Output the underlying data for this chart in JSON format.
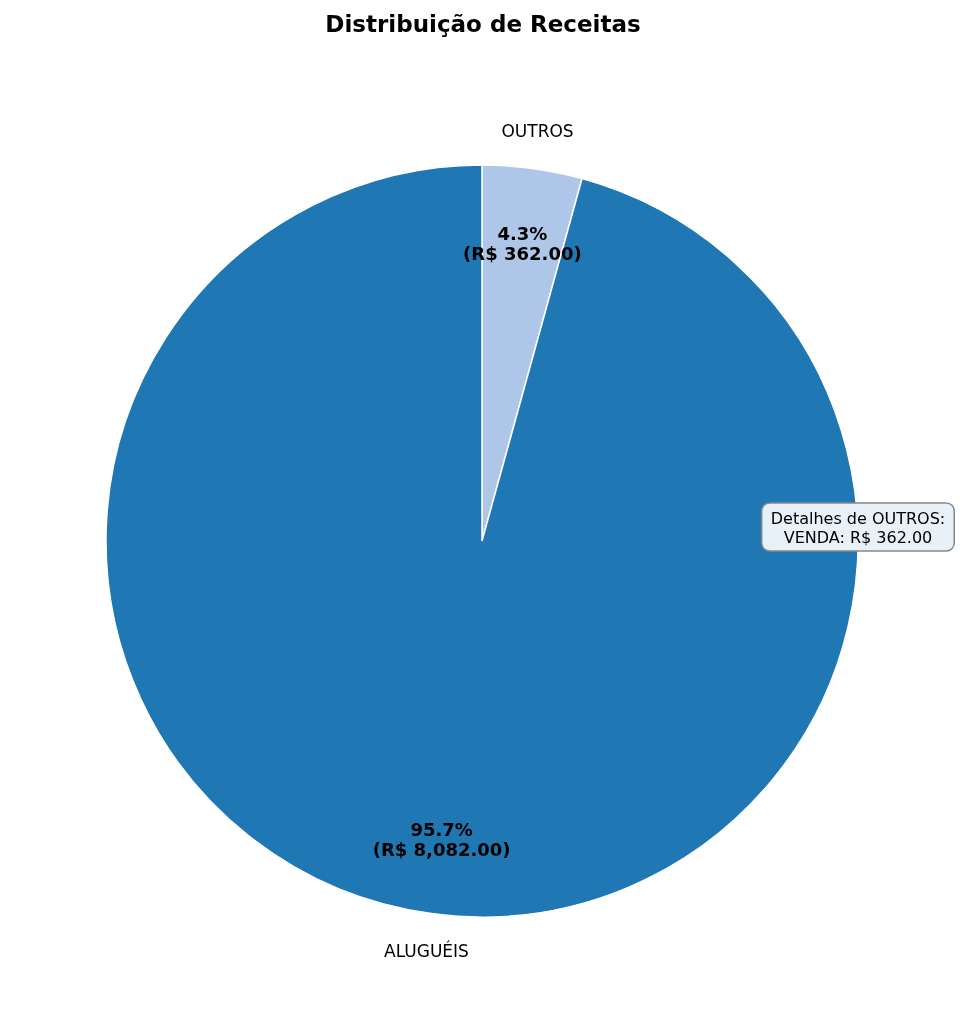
{
  "chart_data": {
    "type": "pie",
    "title": "Distribuição de Receitas",
    "categories": [
      "OUTROS",
      "ALUGUÉIS"
    ],
    "values": [
      362,
      8082
    ],
    "colors": [
      "#aec7e8",
      "#1f77b4"
    ],
    "value_labels": [
      "4.3%\n(R$ 362.00)",
      "95.7%\n(R$ 8,082.00)"
    ],
    "annotations": [
      "Detalhes de OUTROS:\nVENDA: R$ 362.00"
    ]
  }
}
